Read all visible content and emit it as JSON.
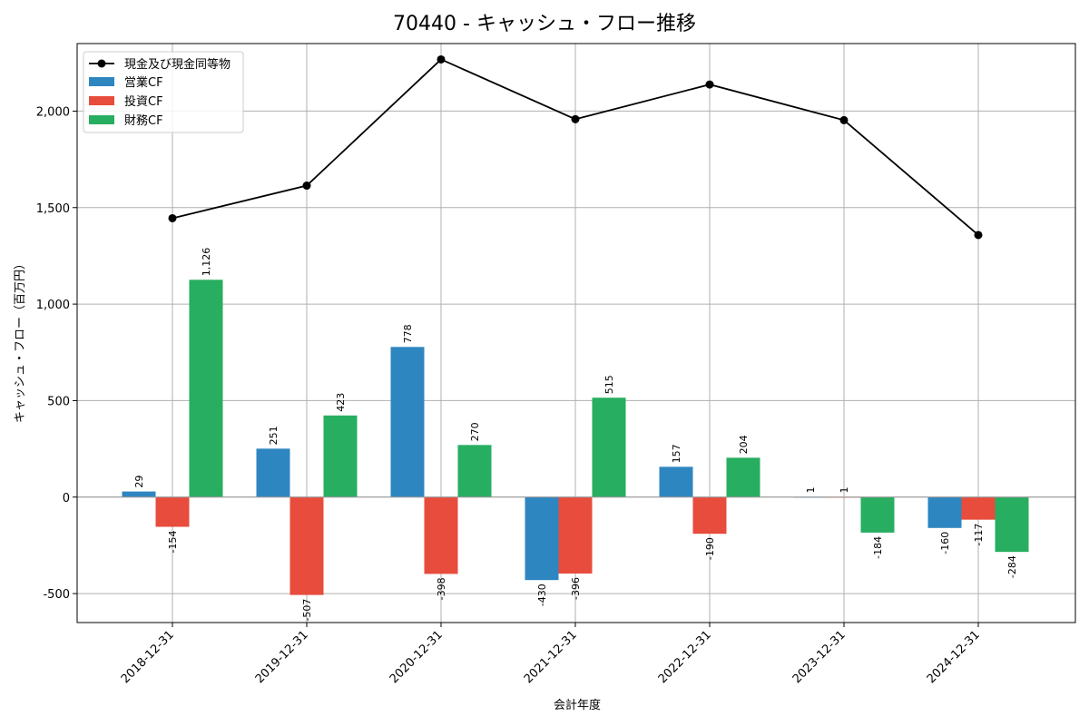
{
  "chart_data": {
    "type": "bar",
    "title": "70440 - キャッシュ・フロー推移",
    "xlabel": "会計年度",
    "ylabel": "キャッシュ・フロー（百万円）",
    "ylim": [
      -650,
      2350
    ],
    "yticks": [
      -500,
      0,
      500,
      1000,
      1500,
      2000
    ],
    "ytick_labels": [
      "-500",
      "0",
      "500",
      "1,000",
      "1,500",
      "2,000"
    ],
    "grid": true,
    "legend_position": "top-left",
    "categories": [
      "2018-12-31",
      "2019-12-31",
      "2020-12-31",
      "2021-12-31",
      "2022-12-31",
      "2023-12-31",
      "2024-12-31"
    ],
    "line": {
      "name": "現金及び現金同等物",
      "color": "#000000",
      "values": [
        1445,
        1614,
        2268,
        1958,
        2138,
        1953,
        1358
      ]
    },
    "series": [
      {
        "name": "営業CF",
        "color": "#2e86c1",
        "values": [
          29,
          251,
          778,
          -430,
          157,
          1,
          -160
        ],
        "labels": [
          "29",
          "251",
          "778",
          "-430",
          "157",
          "1",
          "-160"
        ]
      },
      {
        "name": "投資CF",
        "color": "#e74c3c",
        "values": [
          -154,
          -507,
          -398,
          -396,
          -190,
          1,
          -117
        ],
        "labels": [
          "-154",
          "-507",
          "-398",
          "-396",
          "-190",
          "1",
          "-117"
        ]
      },
      {
        "name": "財務CF",
        "color": "#27ae60",
        "values": [
          1126,
          423,
          270,
          515,
          204,
          -184,
          -284
        ],
        "labels": [
          "1,126",
          "423",
          "270",
          "515",
          "204",
          "-184",
          "-284"
        ]
      }
    ]
  }
}
